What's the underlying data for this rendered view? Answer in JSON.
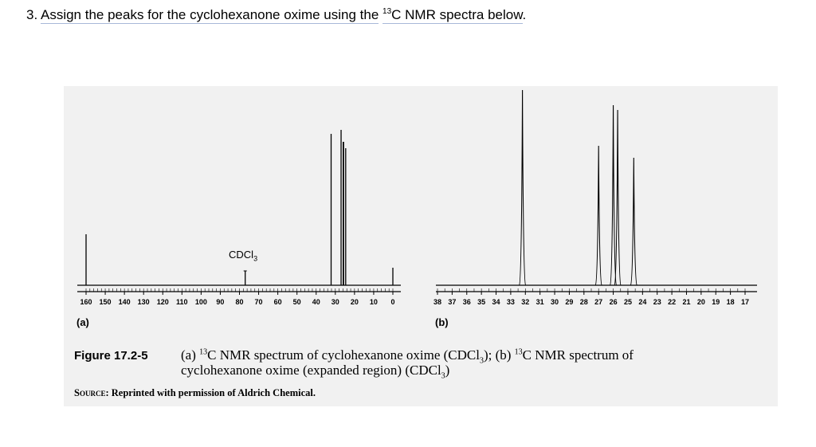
{
  "question": {
    "number": "3.",
    "text_before": "Assign the peaks for the cyclohexanone oxime using the",
    "isotope": "13",
    "text_after": "C NMR spectra below",
    "end": "."
  },
  "spectrum_a": {
    "panel_label": "(a)",
    "solvent_label": "CDCl",
    "solvent_sub": "3",
    "axis_ticks": [
      "160",
      "150",
      "140",
      "130",
      "120",
      "110",
      "100",
      "90",
      "80",
      "70",
      "60",
      "50",
      "40",
      "30",
      "20",
      "10",
      "0"
    ],
    "peaks_ppm": [
      160.0,
      77.0,
      32.2,
      27.0,
      25.9,
      25.7,
      24.6,
      0.0
    ]
  },
  "spectrum_b": {
    "panel_label": "(b)",
    "axis_ticks": [
      "38",
      "37",
      "36",
      "35",
      "34",
      "33",
      "32",
      "31",
      "30",
      "29",
      "28",
      "27",
      "26",
      "25",
      "24",
      "23",
      "22",
      "21",
      "20",
      "19",
      "18",
      "17"
    ],
    "peaks_ppm": [
      32.2,
      27.0,
      26.0,
      25.7,
      24.6
    ]
  },
  "caption": {
    "figure_label": "Figure 17.2-5",
    "part_a": "(a)",
    "iso": "13",
    "nmr_a": "C NMR spectrum of cyclohexanone oxime (CDCl",
    "sub3": "3",
    "close_a": "); (b)",
    "nmr_b": "C NMR spectrum of",
    "line2": "cyclohexanone oxime (expanded region) (CDCl",
    "close_b": ")"
  },
  "source": {
    "label": "Source:",
    "text": "Reprinted with permission of Aldrich Chemical."
  }
}
